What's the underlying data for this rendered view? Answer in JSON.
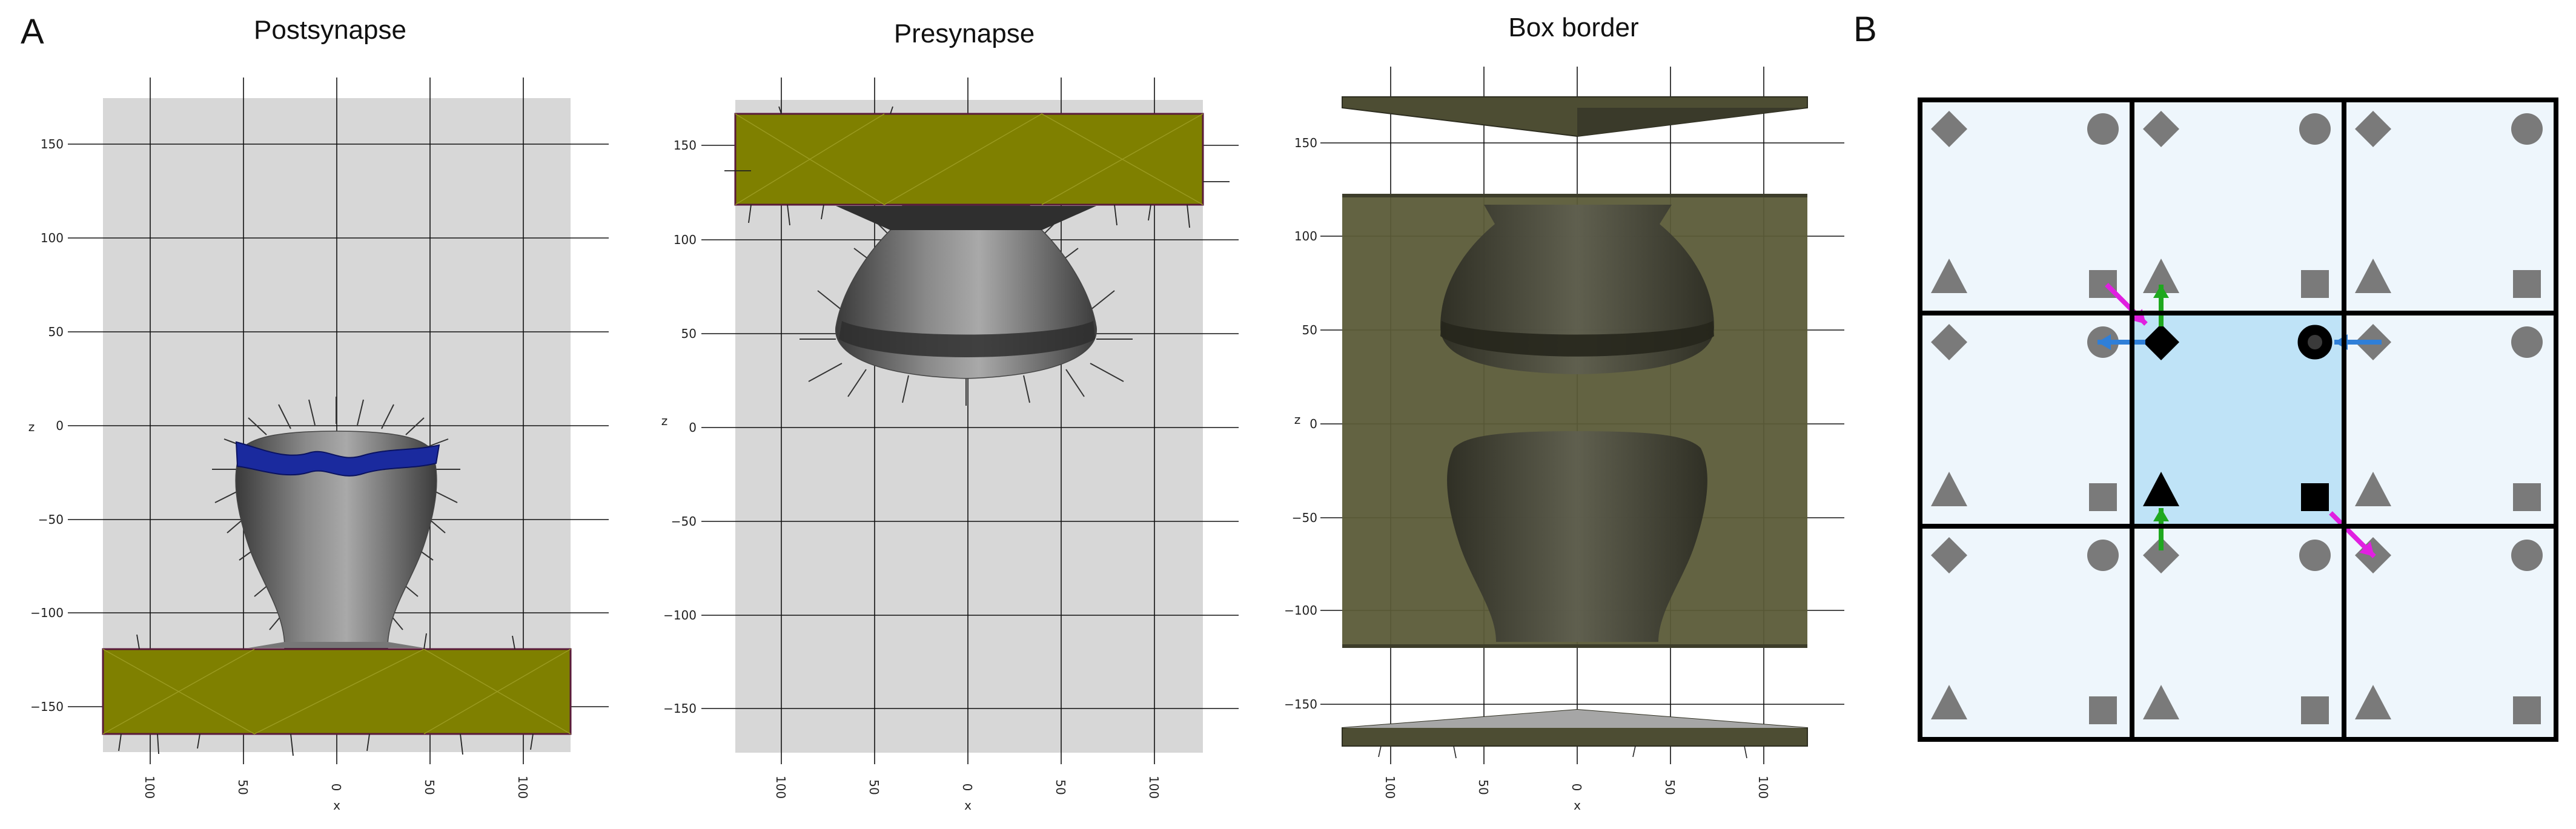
{
  "panel_a": {
    "label": "A",
    "plots": [
      {
        "title": "Postsynapse"
      },
      {
        "title": "Presynapse"
      },
      {
        "title": "Box border"
      }
    ],
    "x_axis_label": "x",
    "z_axis_label": "z",
    "z_ticks": [
      "150",
      "100",
      "50",
      "0",
      "−50",
      "−100",
      "−150"
    ],
    "x_ticks": [
      "100",
      "50",
      "0",
      "50",
      "100"
    ]
  },
  "panel_b": {
    "label": "B",
    "grid": "3x3",
    "shapes": [
      "diamond",
      "circle",
      "triangle",
      "square"
    ],
    "arrow_colors": {
      "magenta": "#e020e0",
      "green": "#1fa81f",
      "blue": "#2f7fd8"
    },
    "cell_color": "#eef6fc",
    "center_cell_color": "#bfe3f7"
  },
  "colors": {
    "plot_background": "#d7d7d7",
    "membrane_slab": "#7f8000",
    "box_olive": "#5b5b38",
    "shape_gray": "#7a7a7a",
    "density_blue": "#1a2a9e"
  }
}
